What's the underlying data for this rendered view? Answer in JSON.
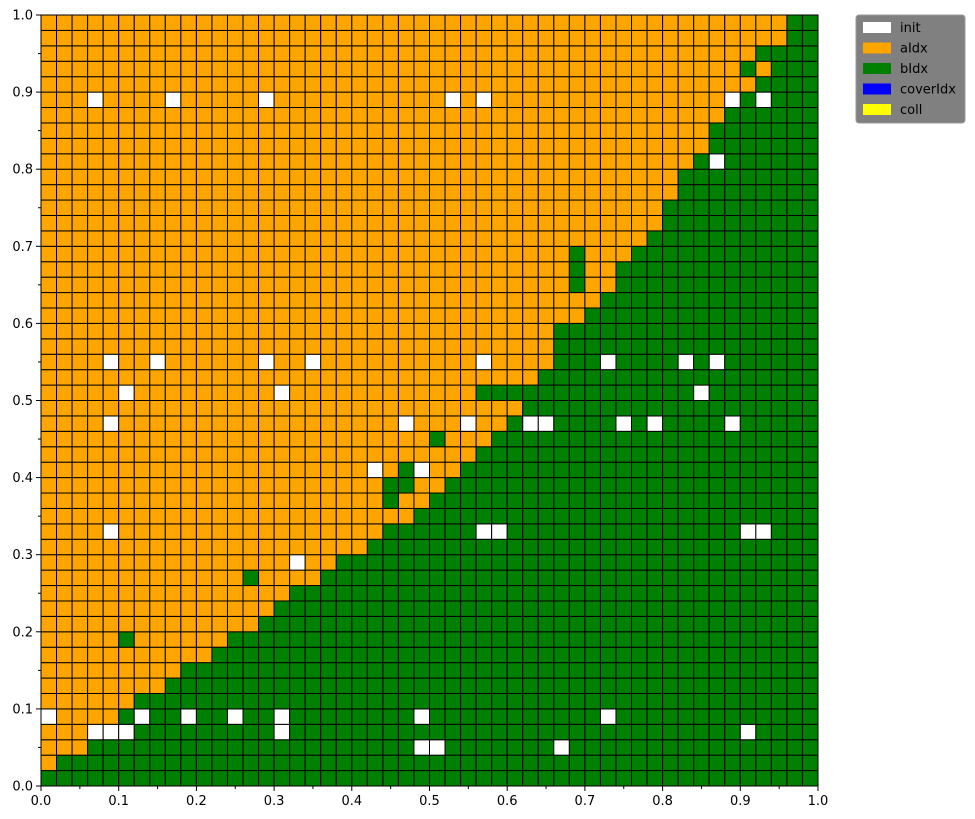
{
  "chart_data": {
    "type": "heatmap",
    "grid_size": 50,
    "xlim": [
      0,
      1
    ],
    "ylim": [
      0,
      1
    ],
    "x_ticks": [
      "0.0",
      "0.1",
      "0.2",
      "0.3",
      "0.4",
      "0.5",
      "0.6",
      "0.7",
      "0.8",
      "0.9",
      "1.0"
    ],
    "y_ticks": [
      "0.0",
      "0.1",
      "0.2",
      "0.3",
      "0.4",
      "0.5",
      "0.6",
      "0.7",
      "0.8",
      "0.9",
      "1.0"
    ],
    "legend": {
      "position": "upper-right-outside",
      "background": "#808080",
      "items": [
        {
          "label": "init",
          "color": "#ffffff"
        },
        {
          "label": "aIdx",
          "color": "#ffa500"
        },
        {
          "label": "bIdx",
          "color": "#008000"
        },
        {
          "label": "coverIdx",
          "color": "#0000ff"
        },
        {
          "label": "coll",
          "color": "#ffff00"
        }
      ]
    },
    "colors": {
      "init": "#ffffff",
      "aIdx": "#ffa500",
      "bIdx": "#008000"
    },
    "boundary_by_column": [
      1,
      2,
      2,
      3,
      4,
      5,
      6,
      6,
      7,
      8,
      8,
      9,
      10,
      10,
      11,
      12,
      13,
      13,
      14,
      15,
      15,
      16,
      17,
      17,
      18,
      19,
      20,
      21,
      22,
      23,
      24,
      25,
      27,
      28,
      30,
      31,
      32,
      34,
      35,
      36,
      38,
      40,
      41,
      43,
      45,
      47,
      48,
      49,
      50,
      50
    ],
    "green_islands_above_boundary": [
      [
        6,
        10
      ],
      [
        14,
        14
      ],
      [
        23,
        19
      ],
      [
        23,
        20
      ],
      [
        24,
        20
      ],
      [
        24,
        21
      ],
      [
        26,
        23
      ],
      [
        29,
        26
      ],
      [
        30,
        26
      ],
      [
        31,
        26
      ],
      [
        32,
        26
      ],
      [
        33,
        27
      ],
      [
        34,
        28
      ],
      [
        34,
        30
      ],
      [
        34,
        29
      ],
      [
        35,
        33
      ],
      [
        35,
        34
      ],
      [
        35,
        35
      ],
      [
        38,
        29
      ],
      [
        38,
        30
      ],
      [
        39,
        30
      ],
      [
        39,
        31
      ],
      [
        40,
        31
      ],
      [
        40,
        32
      ],
      [
        41,
        35
      ],
      [
        42,
        36
      ],
      [
        43,
        38
      ],
      [
        44,
        39
      ],
      [
        45,
        41
      ],
      [
        46,
        42
      ],
      [
        48,
        43
      ],
      [
        49,
        46
      ],
      [
        50,
        48
      ]
    ],
    "orange_islands_below_boundary": [
      [
        15,
        18
      ],
      [
        16,
        21
      ],
      [
        18,
        21
      ],
      [
        19,
        23
      ],
      [
        20,
        25
      ],
      [
        22,
        27
      ],
      [
        23,
        26
      ],
      [
        24,
        29
      ],
      [
        26,
        31
      ],
      [
        28,
        33
      ],
      [
        31,
        37
      ],
      [
        32,
        38
      ],
      [
        37,
        40
      ],
      [
        38,
        40
      ],
      [
        39,
        41
      ],
      [
        40,
        42
      ],
      [
        41,
        43
      ],
      [
        44,
        45
      ],
      [
        46,
        46
      ],
      [
        47,
        47
      ],
      [
        48,
        49
      ]
    ],
    "init_cells": [
      [
        4,
        45
      ],
      [
        9,
        45
      ],
      [
        15,
        45
      ],
      [
        27,
        45
      ],
      [
        29,
        45
      ],
      [
        45,
        45
      ],
      [
        47,
        45
      ],
      [
        44,
        41
      ],
      [
        5,
        28
      ],
      [
        8,
        28
      ],
      [
        15,
        28
      ],
      [
        18,
        28
      ],
      [
        29,
        28
      ],
      [
        37,
        28
      ],
      [
        42,
        28
      ],
      [
        44,
        28
      ],
      [
        6,
        26
      ],
      [
        16,
        26
      ],
      [
        43,
        26
      ],
      [
        5,
        24
      ],
      [
        24,
        24
      ],
      [
        28,
        24
      ],
      [
        32,
        24
      ],
      [
        33,
        24
      ],
      [
        38,
        24
      ],
      [
        40,
        24
      ],
      [
        45,
        24
      ],
      [
        22,
        21
      ],
      [
        25,
        21
      ],
      [
        5,
        17
      ],
      [
        29,
        17
      ],
      [
        30,
        17
      ],
      [
        46,
        17
      ],
      [
        47,
        17
      ],
      [
        17,
        15
      ],
      [
        1,
        5
      ],
      [
        7,
        5
      ],
      [
        10,
        5
      ],
      [
        13,
        5
      ],
      [
        16,
        5
      ],
      [
        25,
        5
      ],
      [
        37,
        5
      ],
      [
        4,
        4
      ],
      [
        5,
        4
      ],
      [
        6,
        4
      ],
      [
        16,
        4
      ],
      [
        46,
        4
      ],
      [
        25,
        3
      ],
      [
        26,
        3
      ],
      [
        34,
        3
      ]
    ]
  }
}
